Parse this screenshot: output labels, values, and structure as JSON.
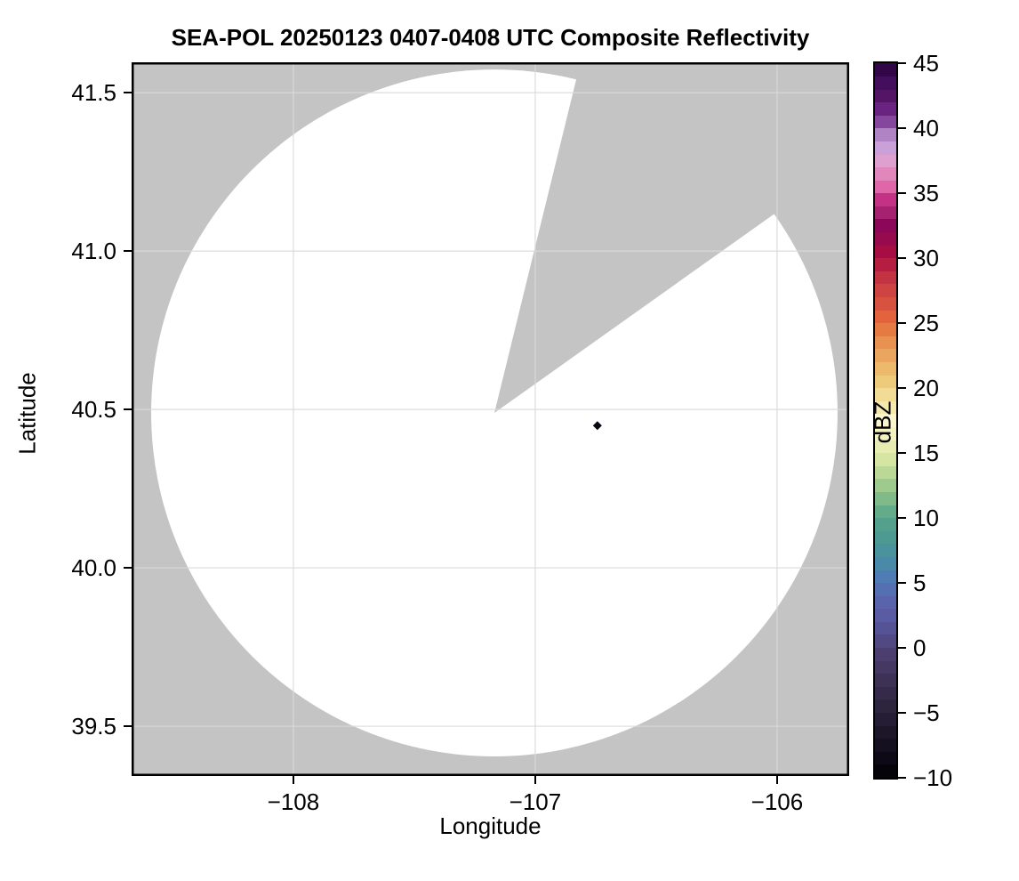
{
  "figure": {
    "title": "SEA-POL 20250123 0407-0408 UTC Composite Reflectivity",
    "background_color": "#ffffff",
    "text_color": "#000000"
  },
  "chart_data": {
    "type": "heatmap",
    "subtype": "radar-ppi-composite-reflectivity",
    "title": "SEA-POL 20250123 0407-0408 UTC Composite Reflectivity",
    "xlabel": "Longitude",
    "ylabel": "Latitude",
    "xlim": [
      -108.669,
      -105.702
    ],
    "ylim": [
      39.343,
      41.596
    ],
    "xticks": [
      -108,
      -107,
      -106
    ],
    "xtick_labels": [
      "−108",
      "−107",
      "−106"
    ],
    "yticks": [
      41.5,
      41.0,
      40.5,
      40.0,
      39.5
    ],
    "ytick_labels": [
      "41.5",
      "41.0",
      "40.5",
      "40.0",
      "39.5"
    ],
    "grid": true,
    "grid_color": "rgba(218,218,218,0.7)",
    "no_data_color": "#c4c4c4",
    "coverage_color": "#ffffff",
    "radar": {
      "center_lon": -107.169,
      "center_lat": 40.489,
      "radius_lon_deg": 1.419,
      "radius_lat_deg": 1.084,
      "blocked_sector_azimuth_from_north_deg": [
        13.8,
        54.6
      ]
    },
    "points": [
      {
        "lon": -106.743,
        "lat": 40.449,
        "approx_value_dbz": -10,
        "color": "#0a0612",
        "marker": "diamond"
      }
    ]
  },
  "colorbar": {
    "label": "dBZ",
    "min": -10,
    "max": 45,
    "step_dbz": 1,
    "ticks": [
      45,
      40,
      35,
      30,
      25,
      20,
      15,
      10,
      5,
      0,
      -5,
      -10
    ],
    "tick_labels": [
      "45",
      "40",
      "35",
      "30",
      "25",
      "20",
      "15",
      "10",
      "5",
      "0",
      "−5",
      "−10"
    ],
    "colors_low_to_high": [
      "#050408",
      "#0d0a16",
      "#15101f",
      "#1d1629",
      "#251d33",
      "#2d243e",
      "#352a4a",
      "#3d3156",
      "#453862",
      "#4c3f70",
      "#514a82",
      "#555295",
      "#595ba3",
      "#5a64ac",
      "#5570b2",
      "#4f7cb5",
      "#4b89a8",
      "#4a929c",
      "#4c9a92",
      "#53a18c",
      "#63ab89",
      "#7fba88",
      "#9fca8e",
      "#bcd897",
      "#d5e5a2",
      "#e7edb0",
      "#f3f2c0",
      "#faf5cd",
      "#f6e9ae",
      "#f2dc95",
      "#eecb7a",
      "#edb96b",
      "#eaa55e",
      "#e89150",
      "#e57a43",
      "#e2633c",
      "#d75340",
      "#cd4443",
      "#c23442",
      "#b51d41",
      "#a60d45",
      "#970a4e",
      "#8d0758",
      "#a6216f",
      "#c43286",
      "#df66a8",
      "#e287bc",
      "#dda0cf",
      "#c9a0d8",
      "#b083c4",
      "#85469e",
      "#6a2380",
      "#541567",
      "#430e5b",
      "#330747"
    ]
  }
}
